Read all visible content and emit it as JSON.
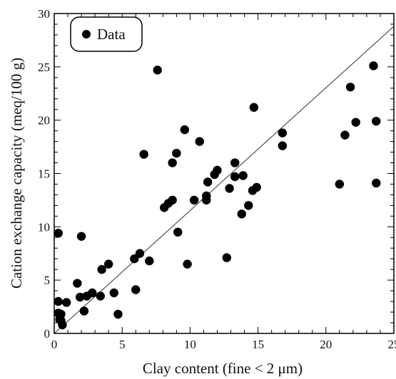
{
  "chart_data": {
    "type": "scatter",
    "title": "",
    "xlabel": "Clay content (fine < 2 μm)",
    "ylabel": "Cation exchange capacity (meq/100 g)",
    "xlim": [
      0,
      25
    ],
    "ylim": [
      0,
      30
    ],
    "xticks": [
      "0",
      "5",
      "10",
      "15",
      "20",
      "25"
    ],
    "yticks": [
      "0",
      "5",
      "10",
      "15",
      "20",
      "25",
      "30"
    ],
    "grid": false,
    "legend": {
      "placement": "top-left",
      "entries": [
        "Data"
      ]
    },
    "series": [
      {
        "name": "Data",
        "marker": "filled-circle",
        "color": "#000000",
        "points": [
          [
            0.3,
            9.4
          ],
          [
            0.3,
            3.0
          ],
          [
            0.3,
            1.9
          ],
          [
            0.4,
            1.3
          ],
          [
            0.5,
            1.8
          ],
          [
            0.5,
            1.2
          ],
          [
            0.6,
            0.8
          ],
          [
            0.9,
            2.9
          ],
          [
            1.7,
            4.7
          ],
          [
            1.9,
            3.4
          ],
          [
            2.0,
            9.1
          ],
          [
            2.2,
            2.1
          ],
          [
            2.4,
            3.5
          ],
          [
            2.8,
            3.8
          ],
          [
            3.4,
            3.5
          ],
          [
            3.5,
            6.0
          ],
          [
            4.0,
            6.5
          ],
          [
            4.4,
            3.8
          ],
          [
            4.7,
            1.8
          ],
          [
            5.9,
            7.0
          ],
          [
            6.0,
            4.1
          ],
          [
            6.3,
            7.5
          ],
          [
            6.6,
            16.8
          ],
          [
            7.0,
            6.8
          ],
          [
            7.6,
            24.7
          ],
          [
            8.1,
            11.8
          ],
          [
            8.4,
            12.2
          ],
          [
            8.7,
            12.5
          ],
          [
            8.7,
            16.0
          ],
          [
            9.0,
            16.9
          ],
          [
            9.1,
            9.5
          ],
          [
            9.6,
            19.1
          ],
          [
            9.8,
            6.5
          ],
          [
            10.3,
            12.5
          ],
          [
            10.7,
            18.0
          ],
          [
            11.2,
            12.5
          ],
          [
            11.2,
            12.9
          ],
          [
            11.3,
            14.2
          ],
          [
            11.8,
            14.9
          ],
          [
            12.0,
            15.3
          ],
          [
            12.7,
            7.1
          ],
          [
            12.9,
            13.6
          ],
          [
            13.3,
            14.7
          ],
          [
            13.3,
            16.0
          ],
          [
            13.8,
            11.2
          ],
          [
            13.9,
            14.8
          ],
          [
            14.3,
            12.0
          ],
          [
            14.6,
            13.4
          ],
          [
            14.7,
            21.2
          ],
          [
            14.9,
            13.7
          ],
          [
            16.8,
            18.8
          ],
          [
            16.8,
            17.6
          ],
          [
            21.0,
            14.0
          ],
          [
            21.4,
            18.6
          ],
          [
            21.8,
            23.1
          ],
          [
            22.2,
            19.8
          ],
          [
            23.5,
            25.1
          ],
          [
            23.7,
            19.9
          ],
          [
            23.7,
            14.1
          ]
        ]
      },
      {
        "name": "",
        "type": "line",
        "color": "#333333",
        "x": [
          0,
          25
        ],
        "y": [
          0,
          28.8
        ]
      }
    ]
  }
}
